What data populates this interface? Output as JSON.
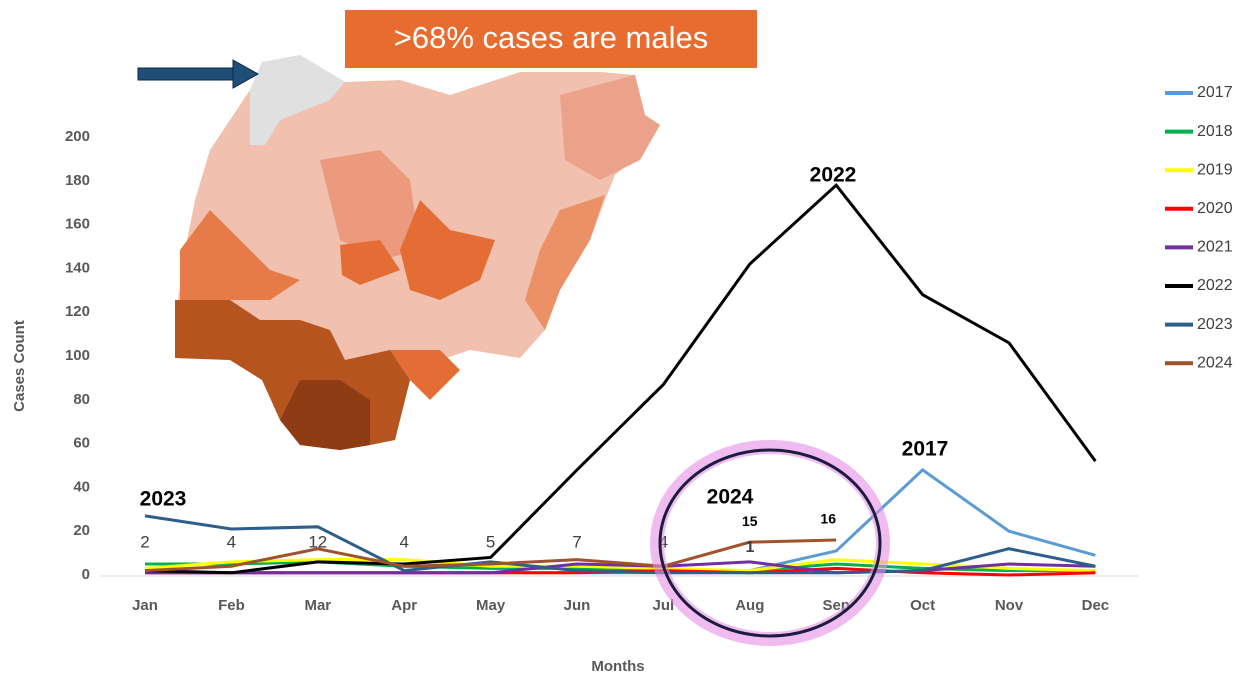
{
  "chart_data": {
    "type": "line",
    "x_label": "Months",
    "y_label": "Cases Count",
    "categories": [
      "Jan",
      "Feb",
      "Mar",
      "Apr",
      "May",
      "Jun",
      "Jul",
      "Aug",
      "Sep",
      "Oct",
      "Nov",
      "Dec"
    ],
    "ylim": [
      0,
      200
    ],
    "yticks": [
      0,
      20,
      40,
      60,
      80,
      100,
      120,
      140,
      160,
      180,
      200
    ],
    "legend": "right",
    "grid": false,
    "series": [
      {
        "name": "2017",
        "color": "#5b9bd5",
        "values": [
          1,
          1,
          1,
          1,
          1,
          1,
          1,
          2,
          11,
          48,
          20,
          9
        ]
      },
      {
        "name": "2018",
        "color": "#00b050",
        "values": [
          5,
          5,
          6,
          4,
          3,
          3,
          2,
          2,
          5,
          3,
          2,
          2
        ]
      },
      {
        "name": "2019",
        "color": "#ffff00",
        "values": [
          3,
          6,
          7,
          7,
          4,
          4,
          3,
          2,
          7,
          5,
          3,
          2
        ]
      },
      {
        "name": "2020",
        "color": "#ff0000",
        "values": [
          1,
          1,
          1,
          1,
          1,
          1,
          2,
          1,
          3,
          1,
          0,
          1
        ]
      },
      {
        "name": "2021",
        "color": "#7030a0",
        "values": [
          1,
          1,
          1,
          1,
          1,
          5,
          4,
          6,
          1,
          2,
          5,
          4
        ]
      },
      {
        "name": "2022",
        "color": "#000000",
        "values": [
          2,
          1,
          6,
          5,
          8,
          48,
          87,
          142,
          178,
          128,
          106,
          52
        ]
      },
      {
        "name": "2023",
        "color": "#2e5f8a",
        "values": [
          27,
          21,
          22,
          2,
          6,
          2,
          1,
          1,
          1,
          2,
          12,
          4
        ]
      },
      {
        "name": "2024",
        "color": "#a0522d",
        "values": [
          2,
          4,
          12,
          4,
          5,
          7,
          4,
          15,
          16,
          null,
          null,
          null
        ]
      }
    ],
    "annotations": [
      "2022",
      "2017",
      "2023",
      "2024",
      "1"
    ],
    "callout": ">68% cases are males"
  }
}
